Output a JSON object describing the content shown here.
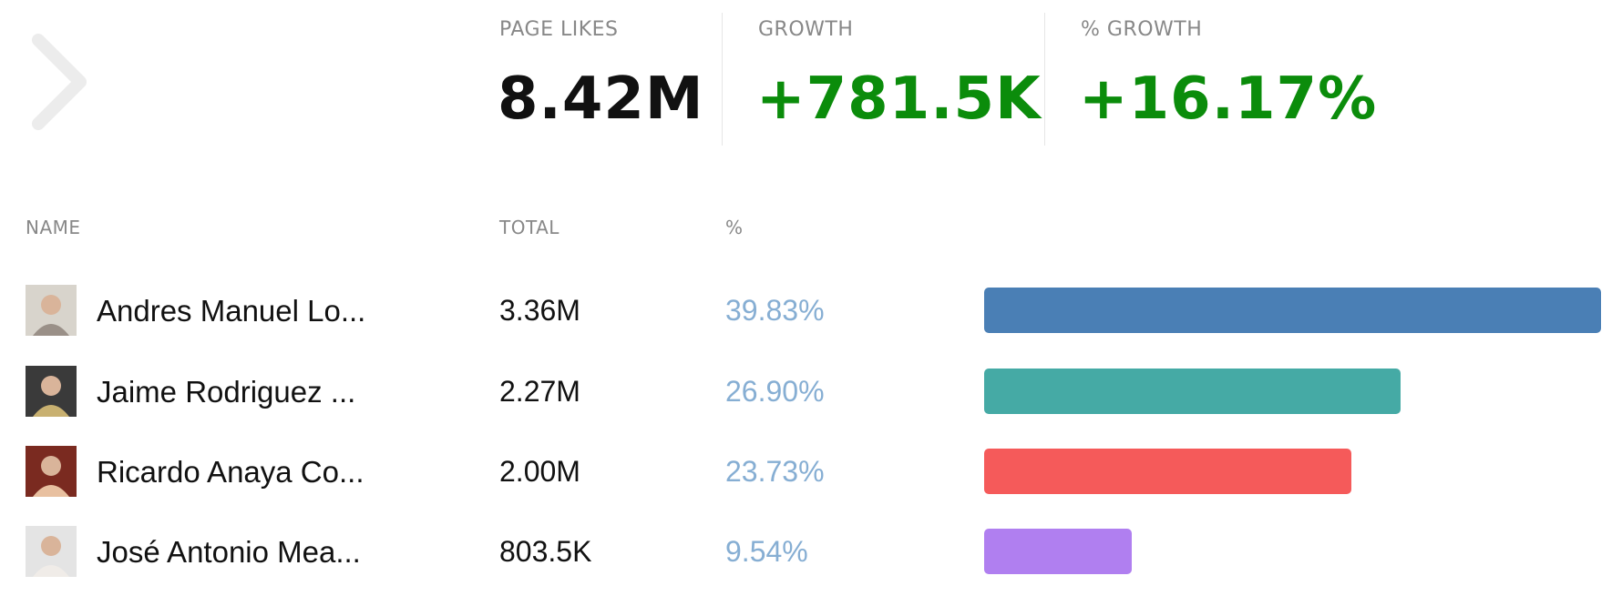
{
  "header": {
    "stats": [
      {
        "label": "PAGE LIKES",
        "value": "8.42M"
      },
      {
        "label": "GROWTH",
        "value": "+781.5K"
      },
      {
        "label": "% GROWTH",
        "value": "+16.17%"
      }
    ]
  },
  "table": {
    "columns": [
      "NAME",
      "TOTAL",
      "%"
    ],
    "rows": [
      {
        "name": "Andres Manuel Lo...",
        "total": "3.36M",
        "percent": 39.83,
        "percent_label": "39.83%",
        "color": "#4a7fb5"
      },
      {
        "name": "Jaime Rodriguez ...",
        "total": "2.27M",
        "percent": 26.9,
        "percent_label": "26.90%",
        "color": "#45aaa5"
      },
      {
        "name": "Ricardo Anaya Co...",
        "total": "2.00M",
        "percent": 23.73,
        "percent_label": "23.73%",
        "color": "#f55a5a"
      },
      {
        "name": "José Antonio Mea...",
        "total": "803.5K",
        "percent": 9.54,
        "percent_label": "9.54%",
        "color": "#b07ff0"
      }
    ]
  }
}
